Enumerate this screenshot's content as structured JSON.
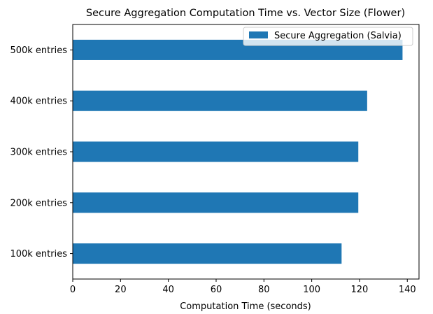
{
  "chart_data": {
    "type": "bar",
    "orientation": "horizontal",
    "title": "Secure Aggregation Computation Time vs. Vector Size (Flower)",
    "xlabel": "Computation Time (seconds)",
    "ylabel": "",
    "categories": [
      "100k entries",
      "200k entries",
      "300k entries",
      "400k entries",
      "500k entries"
    ],
    "series": [
      {
        "name": "Secure Aggregation (Salvia)",
        "color": "#1f77b4",
        "values": [
          112.5,
          119.5,
          119.5,
          123.2,
          138.0
        ]
      }
    ],
    "xlim": [
      0,
      144.9
    ],
    "xticks": [
      "0",
      "20",
      "40",
      "60",
      "80",
      "100",
      "120",
      "140"
    ],
    "grid": false,
    "legend": "top-right"
  }
}
